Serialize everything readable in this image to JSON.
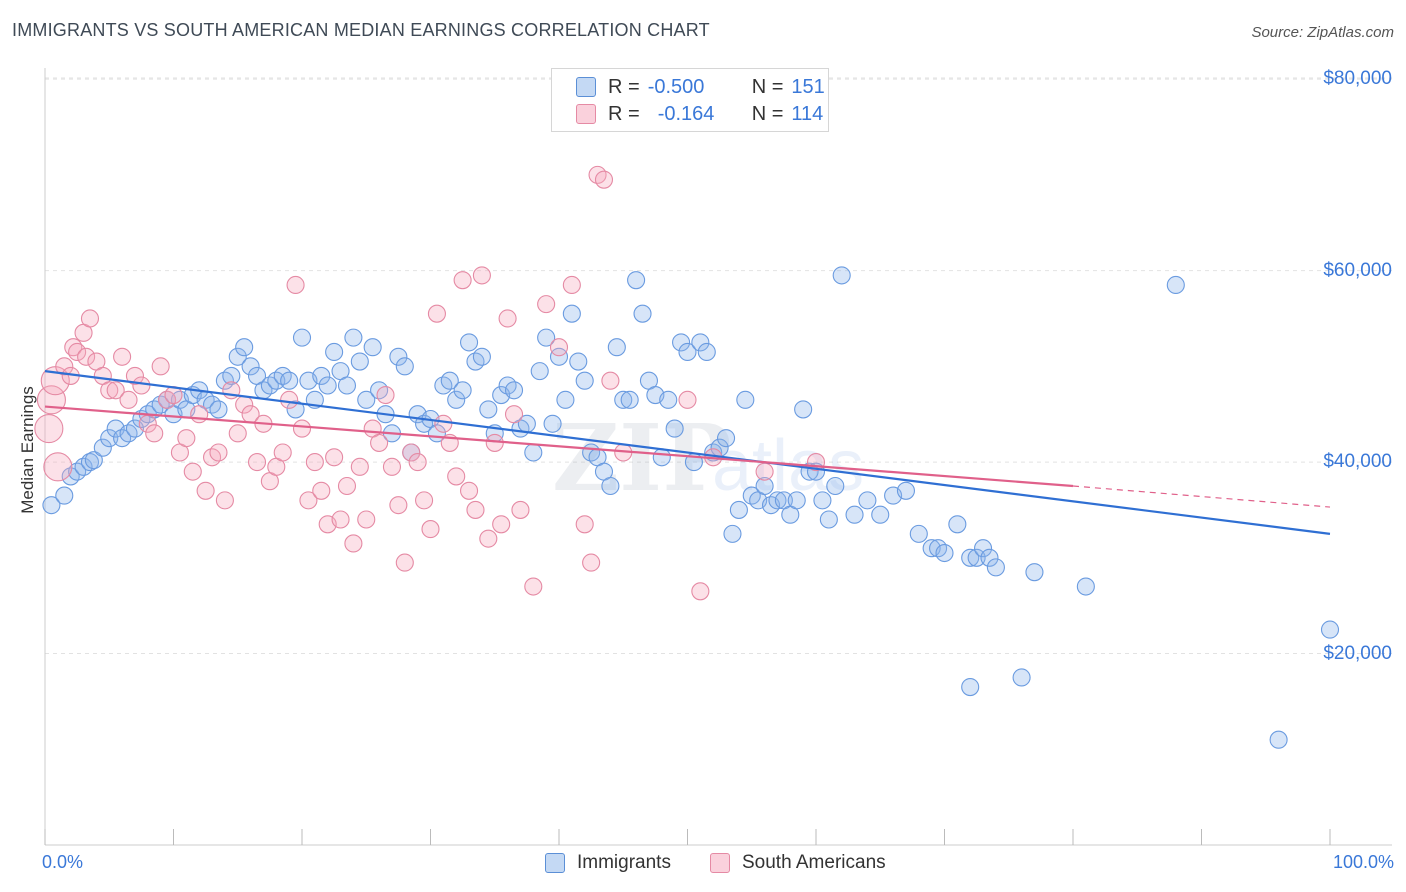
{
  "header": {
    "title": "IMMIGRANTS VS SOUTH AMERICAN MEDIAN EARNINGS CORRELATION CHART",
    "source": "Source: ZipAtlas.com"
  },
  "legend": {
    "r_label": "R =",
    "n_label": "N =",
    "items": [
      {
        "r": "-0.500",
        "n": "151",
        "color": "#9dbfea",
        "border": "#5b8fd6"
      },
      {
        "r": "-0.164",
        "n": "114",
        "color": "#f5b8c8",
        "border": "#e58aa4"
      }
    ]
  },
  "watermark": {
    "zip": "ZIP",
    "atlas": "atlas"
  },
  "chart_data": {
    "type": "scatter",
    "ylabel": "Median Earnings",
    "x_tick_labels": {
      "left": "0.0%",
      "right": "100.0%"
    },
    "xlim": [
      0,
      100
    ],
    "ylim": [
      0,
      82000
    ],
    "y_ticks": [
      {
        "value": 20000,
        "label": "$20,000"
      },
      {
        "value": 40000,
        "label": "$40,000"
      },
      {
        "value": 60000,
        "label": "$60,000"
      },
      {
        "value": 80000,
        "label": "$80,000"
      }
    ],
    "grid": true,
    "series": [
      {
        "name": "Immigrants",
        "color": "#6a9be0",
        "fill": "rgba(140,180,235,0.35)",
        "trend": {
          "x1": 0,
          "y1": 49500,
          "x2": 100,
          "y2": 32500,
          "color": "#2f6fd3"
        },
        "points": [
          [
            0.5,
            35500
          ],
          [
            1.5,
            36500
          ],
          [
            2,
            38500
          ],
          [
            2.5,
            39000
          ],
          [
            3,
            39500
          ],
          [
            3.5,
            40000
          ],
          [
            3.8,
            40200
          ],
          [
            4.5,
            41500
          ],
          [
            5,
            42500
          ],
          [
            5.5,
            43500
          ],
          [
            6,
            42500
          ],
          [
            6.5,
            43000
          ],
          [
            7,
            43500
          ],
          [
            7.5,
            44500
          ],
          [
            8,
            45000
          ],
          [
            8.5,
            45500
          ],
          [
            9,
            46000
          ],
          [
            9.5,
            46500
          ],
          [
            10,
            45000
          ],
          [
            10.5,
            46500
          ],
          [
            11,
            45500
          ],
          [
            11.5,
            47000
          ],
          [
            12,
            47500
          ],
          [
            12.5,
            46500
          ],
          [
            13,
            46000
          ],
          [
            13.5,
            45500
          ],
          [
            14,
            48500
          ],
          [
            14.5,
            49000
          ],
          [
            15,
            51000
          ],
          [
            15.5,
            52000
          ],
          [
            16,
            50000
          ],
          [
            16.5,
            49000
          ],
          [
            17,
            47500
          ],
          [
            17.5,
            48000
          ],
          [
            18,
            48500
          ],
          [
            18.5,
            49000
          ],
          [
            19,
            48500
          ],
          [
            19.5,
            45500
          ],
          [
            20,
            53000
          ],
          [
            20.5,
            48500
          ],
          [
            21,
            46500
          ],
          [
            21.5,
            49000
          ],
          [
            22,
            48000
          ],
          [
            22.5,
            51500
          ],
          [
            23,
            49500
          ],
          [
            23.5,
            48000
          ],
          [
            24,
            53000
          ],
          [
            24.5,
            50500
          ],
          [
            25,
            46500
          ],
          [
            25.5,
            52000
          ],
          [
            26,
            47500
          ],
          [
            26.5,
            45000
          ],
          [
            27,
            43000
          ],
          [
            27.5,
            51000
          ],
          [
            28,
            50000
          ],
          [
            28.5,
            41000
          ],
          [
            29,
            45000
          ],
          [
            29.5,
            44000
          ],
          [
            30,
            44500
          ],
          [
            30.5,
            43000
          ],
          [
            31,
            48000
          ],
          [
            31.5,
            48500
          ],
          [
            32,
            46500
          ],
          [
            32.5,
            47500
          ],
          [
            33,
            52500
          ],
          [
            33.5,
            50500
          ],
          [
            34,
            51000
          ],
          [
            34.5,
            45500
          ],
          [
            35,
            43000
          ],
          [
            35.5,
            47000
          ],
          [
            36,
            48000
          ],
          [
            36.5,
            47500
          ],
          [
            37,
            43500
          ],
          [
            37.5,
            44000
          ],
          [
            38,
            41000
          ],
          [
            38.5,
            49500
          ],
          [
            39,
            53000
          ],
          [
            39.5,
            44000
          ],
          [
            40,
            51000
          ],
          [
            40.5,
            46500
          ],
          [
            41,
            55500
          ],
          [
            41.5,
            50500
          ],
          [
            42,
            48500
          ],
          [
            42.5,
            41000
          ],
          [
            43,
            40500
          ],
          [
            43.5,
            39000
          ],
          [
            44,
            37500
          ],
          [
            44.5,
            52000
          ],
          [
            45,
            46500
          ],
          [
            45.5,
            46500
          ],
          [
            46,
            59000
          ],
          [
            46.5,
            55500
          ],
          [
            47,
            48500
          ],
          [
            47.5,
            47000
          ],
          [
            48,
            40500
          ],
          [
            48.5,
            46500
          ],
          [
            49,
            43500
          ],
          [
            49.5,
            52500
          ],
          [
            50,
            51500
          ],
          [
            50.5,
            40000
          ],
          [
            51,
            52500
          ],
          [
            51.5,
            51500
          ],
          [
            52,
            41000
          ],
          [
            52.5,
            41500
          ],
          [
            53,
            42500
          ],
          [
            53.5,
            32500
          ],
          [
            54,
            35000
          ],
          [
            54.5,
            46500
          ],
          [
            55,
            36500
          ],
          [
            55.5,
            36000
          ],
          [
            56,
            37500
          ],
          [
            56.5,
            35500
          ],
          [
            57,
            36000
          ],
          [
            57.5,
            36000
          ],
          [
            58,
            34500
          ],
          [
            58.5,
            36000
          ],
          [
            59,
            45500
          ],
          [
            59.5,
            39000
          ],
          [
            60,
            39000
          ],
          [
            60.5,
            36000
          ],
          [
            61,
            34000
          ],
          [
            61.5,
            37500
          ],
          [
            62,
            59500
          ],
          [
            63,
            34500
          ],
          [
            64,
            36000
          ],
          [
            65,
            34500
          ],
          [
            66,
            36500
          ],
          [
            67,
            37000
          ],
          [
            68,
            32500
          ],
          [
            69,
            31000
          ],
          [
            69.5,
            31000
          ],
          [
            70,
            30500
          ],
          [
            71,
            33500
          ],
          [
            72,
            30000
          ],
          [
            72.5,
            30000
          ],
          [
            73,
            31000
          ],
          [
            73.5,
            30000
          ],
          [
            74,
            29000
          ],
          [
            77,
            28500
          ],
          [
            81,
            27000
          ],
          [
            72,
            16500
          ],
          [
            76,
            17500
          ],
          [
            88,
            58500
          ],
          [
            100,
            22500
          ],
          [
            96,
            11000
          ]
        ]
      },
      {
        "name": "South Americans",
        "color": "#e58aa4",
        "fill": "rgba(245,170,190,0.35)",
        "trend": {
          "x1": 0,
          "y1": 45800,
          "x2": 80,
          "y2": 37500,
          "color": "#e0608a",
          "dash_to": {
            "x": 100,
            "y": 35300
          }
        },
        "points": [
          [
            0.3,
            43500
          ],
          [
            0.5,
            46500
          ],
          [
            0.8,
            48500
          ],
          [
            1,
            39500
          ],
          [
            1.5,
            50000
          ],
          [
            2,
            49000
          ],
          [
            2.2,
            52000
          ],
          [
            2.5,
            51500
          ],
          [
            3,
            53500
          ],
          [
            3.2,
            51000
          ],
          [
            3.5,
            55000
          ],
          [
            4,
            50500
          ],
          [
            4.5,
            49000
          ],
          [
            5,
            47500
          ],
          [
            5.5,
            47500
          ],
          [
            6,
            51000
          ],
          [
            6.5,
            46500
          ],
          [
            7,
            49000
          ],
          [
            7.5,
            48000
          ],
          [
            8,
            44000
          ],
          [
            8.5,
            43000
          ],
          [
            9,
            50000
          ],
          [
            9.5,
            46500
          ],
          [
            10,
            47000
          ],
          [
            10.5,
            41000
          ],
          [
            11,
            42500
          ],
          [
            11.5,
            39000
          ],
          [
            12,
            45000
          ],
          [
            12.5,
            37000
          ],
          [
            13,
            40500
          ],
          [
            13.5,
            41000
          ],
          [
            14,
            36000
          ],
          [
            14.5,
            47500
          ],
          [
            15,
            43000
          ],
          [
            15.5,
            46000
          ],
          [
            16,
            45000
          ],
          [
            16.5,
            40000
          ],
          [
            17,
            44000
          ],
          [
            17.5,
            38000
          ],
          [
            18,
            39500
          ],
          [
            18.5,
            41000
          ],
          [
            19,
            46500
          ],
          [
            19.5,
            58500
          ],
          [
            20,
            43500
          ],
          [
            20.5,
            36000
          ],
          [
            21,
            40000
          ],
          [
            21.5,
            37000
          ],
          [
            22,
            33500
          ],
          [
            22.5,
            40500
          ],
          [
            23,
            34000
          ],
          [
            23.5,
            37500
          ],
          [
            24,
            31500
          ],
          [
            24.5,
            39500
          ],
          [
            25,
            34000
          ],
          [
            25.5,
            43500
          ],
          [
            26,
            42000
          ],
          [
            26.5,
            47000
          ],
          [
            27,
            39500
          ],
          [
            27.5,
            35500
          ],
          [
            28,
            29500
          ],
          [
            28.5,
            41000
          ],
          [
            29,
            40000
          ],
          [
            29.5,
            36000
          ],
          [
            30,
            33000
          ],
          [
            30.5,
            55500
          ],
          [
            31,
            44000
          ],
          [
            31.5,
            42000
          ],
          [
            32,
            38500
          ],
          [
            32.5,
            59000
          ],
          [
            33,
            37000
          ],
          [
            33.5,
            35000
          ],
          [
            34,
            59500
          ],
          [
            34.5,
            32000
          ],
          [
            35,
            42000
          ],
          [
            35.5,
            33500
          ],
          [
            36,
            55000
          ],
          [
            36.5,
            45000
          ],
          [
            37,
            35000
          ],
          [
            38,
            27000
          ],
          [
            39,
            56500
          ],
          [
            40,
            52000
          ],
          [
            41,
            58500
          ],
          [
            42,
            33500
          ],
          [
            42.5,
            29500
          ],
          [
            43,
            70000
          ],
          [
            44,
            48500
          ],
          [
            45,
            41000
          ],
          [
            50,
            46500
          ],
          [
            51,
            26500
          ],
          [
            52,
            40500
          ],
          [
            56,
            39000
          ],
          [
            60,
            40000
          ],
          [
            43.5,
            69500
          ]
        ]
      }
    ]
  }
}
